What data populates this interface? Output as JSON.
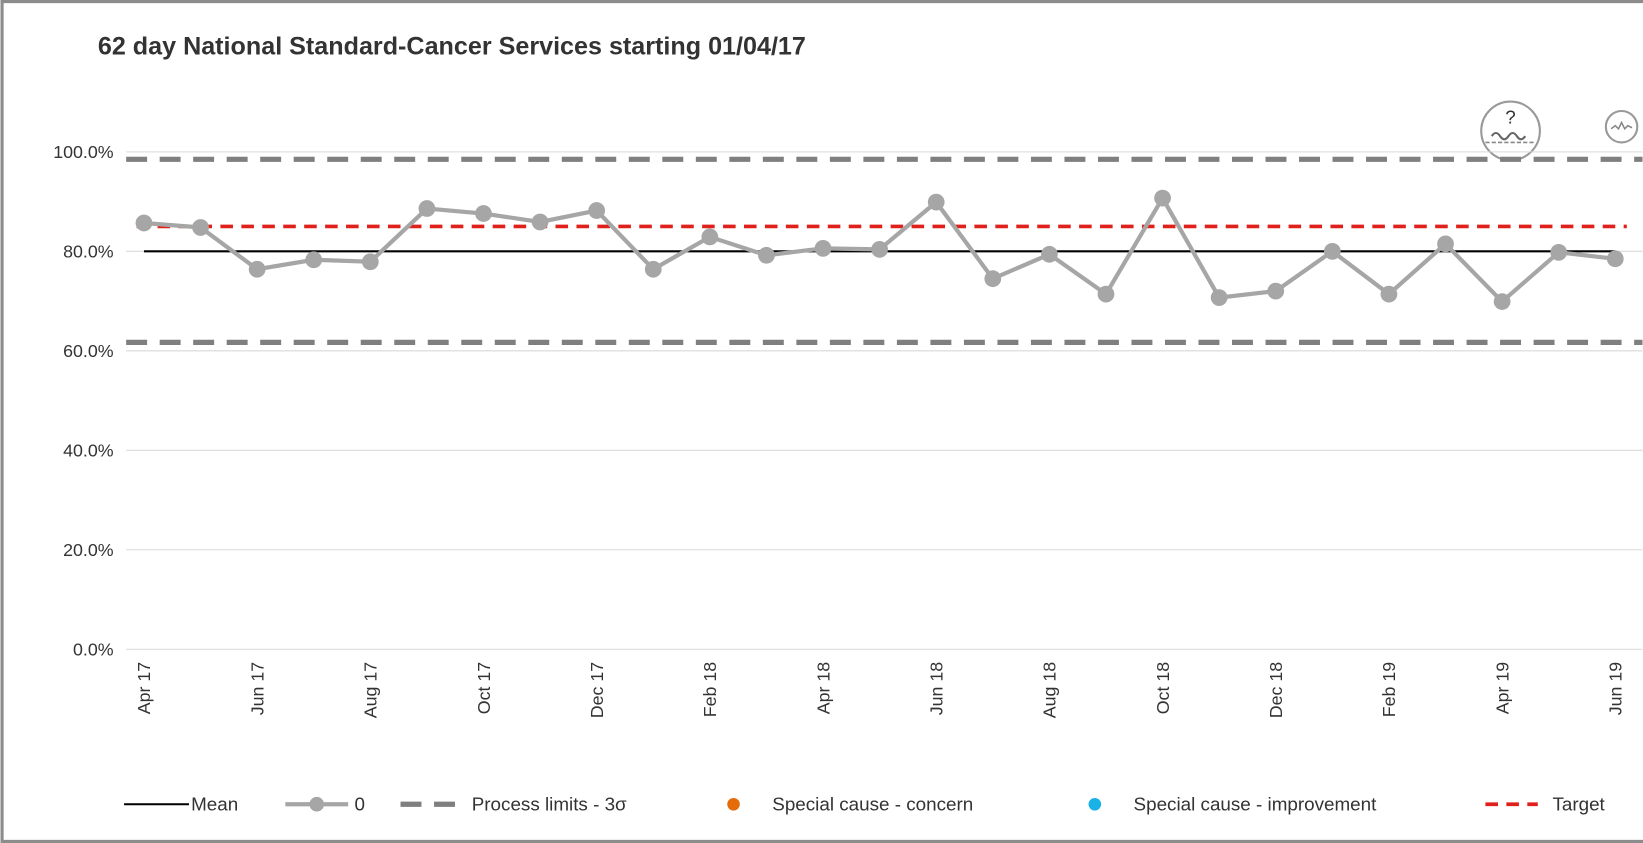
{
  "chart_data": {
    "type": "line",
    "title": "62 day National Standard-Cancer Services starting 01/04/17",
    "categories": [
      "Apr 17",
      null,
      "Jun 17",
      null,
      "Aug 17",
      null,
      "Oct 17",
      null,
      "Dec 17",
      null,
      "Feb 18",
      null,
      "Apr 18",
      null,
      "Jun 18",
      null,
      "Aug 18",
      null,
      "Oct 18",
      null,
      "Dec 18",
      null,
      "Feb 19",
      null,
      "Apr 19",
      null,
      "Jun 19"
    ],
    "series": [
      {
        "name": "0",
        "color": "#a6a6a6",
        "values": [
          85.7,
          84.8,
          76.4,
          78.3,
          77.9,
          88.6,
          87.6,
          85.9,
          88.2,
          76.4,
          82.9,
          79.2,
          80.6,
          80.4,
          89.9,
          74.5,
          79.4,
          71.4,
          90.7,
          70.7,
          72.0,
          80.0,
          71.4,
          81.5,
          69.9,
          79.8,
          78.5
        ]
      }
    ],
    "mean": {
      "name": "Mean",
      "value": 80.0,
      "color": "#000000"
    },
    "limits": {
      "name": "Process limits - 3σ",
      "upper": 98.5,
      "lower": 61.7,
      "color": "#7f7f7f"
    },
    "target": {
      "name": "Target",
      "value": 85,
      "color": "#e0201b"
    },
    "special_causes": [
      {
        "name": "Special cause - concern",
        "color": "#e46c0a"
      },
      {
        "name": "Special cause  - improvement",
        "color": "#19b2e6"
      }
    ],
    "icon_text": "?",
    "ylim": [
      0,
      100
    ],
    "yticks": [
      {
        "value": 0,
        "label": "0.0%"
      },
      {
        "value": 20,
        "label": "20.0%"
      },
      {
        "value": 40,
        "label": "40.0%"
      },
      {
        "value": 60,
        "label": "60.0%"
      },
      {
        "value": 80,
        "label": "80.0%"
      },
      {
        "value": 100,
        "label": "100.0%"
      }
    ],
    "grid": true
  }
}
